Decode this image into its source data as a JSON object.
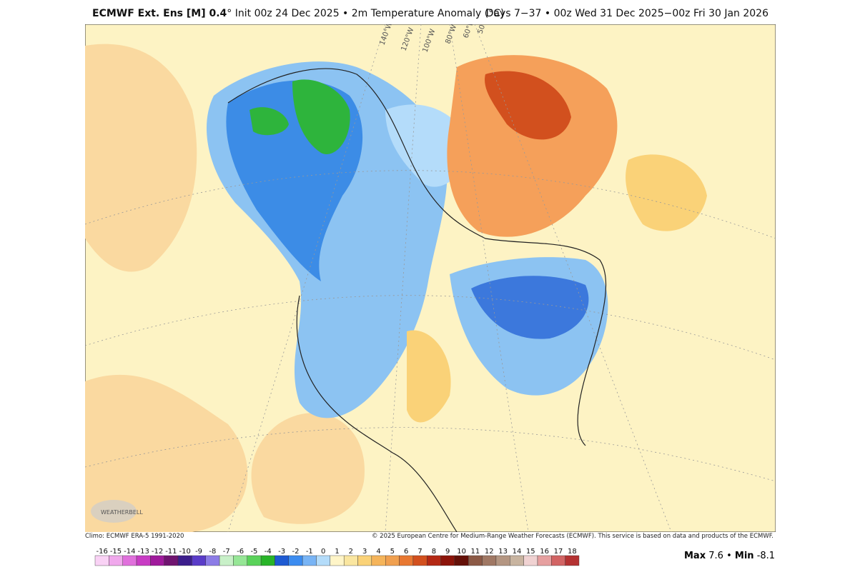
{
  "header": {
    "title_bold": "ECMWF Ext. Ens [M] 0.4",
    "title_rest": "° Init 00z 24 Dec 2025 • 2m Temperature Anomaly (°C)",
    "valid": "Days 7−37 • 00z Wed 31 Dec 2025−00z Fri 30 Jan 2026"
  },
  "map": {
    "lon_labels": [
      "140°W",
      "120°W",
      "100°W",
      "80°W",
      "60°W",
      "50°W"
    ],
    "logo": "WEATHERBELL"
  },
  "footer": {
    "climo": "Climo: ECMWF ERA-5 1991-2020",
    "credit": "© 2025 European Centre for Medium-Range Weather Forecasts (ECMWF). This service is based on data and products of the ECMWF."
  },
  "colorbar": {
    "ticks": [
      -16,
      -15,
      -14,
      -13,
      -12,
      -11,
      -10,
      -9,
      -8,
      -7,
      -6,
      -5,
      -4,
      -3,
      -2,
      -1,
      0,
      1,
      2,
      3,
      4,
      5,
      6,
      7,
      8,
      9,
      10,
      11,
      12,
      13,
      14,
      15,
      16,
      17,
      18
    ],
    "colors": [
      "#f9d2f5",
      "#f0a8ec",
      "#e070dc",
      "#c83cc4",
      "#a01a9c",
      "#701470",
      "#3c1e8c",
      "#5a3cc8",
      "#8c7ce6",
      "#c8f0c8",
      "#96e696",
      "#5ad25a",
      "#28b428",
      "#1e5ad2",
      "#3c8cf0",
      "#78b4f5",
      "#b4dcfa",
      "#fff5c8",
      "#fae6a0",
      "#fad278",
      "#f5b45a",
      "#f0a050",
      "#e87832",
      "#d2501e",
      "#b42814",
      "#8c140a",
      "#641008",
      "#8c5a46",
      "#a07864",
      "#b49682",
      "#c8b4a0",
      "#f0d2d2",
      "#e6a0a0",
      "#d26464",
      "#b43232"
    ]
  },
  "stats": {
    "max_label": "Max",
    "max": 7.6,
    "sep": "•",
    "min_label": "Min",
    "min": -8.1
  }
}
